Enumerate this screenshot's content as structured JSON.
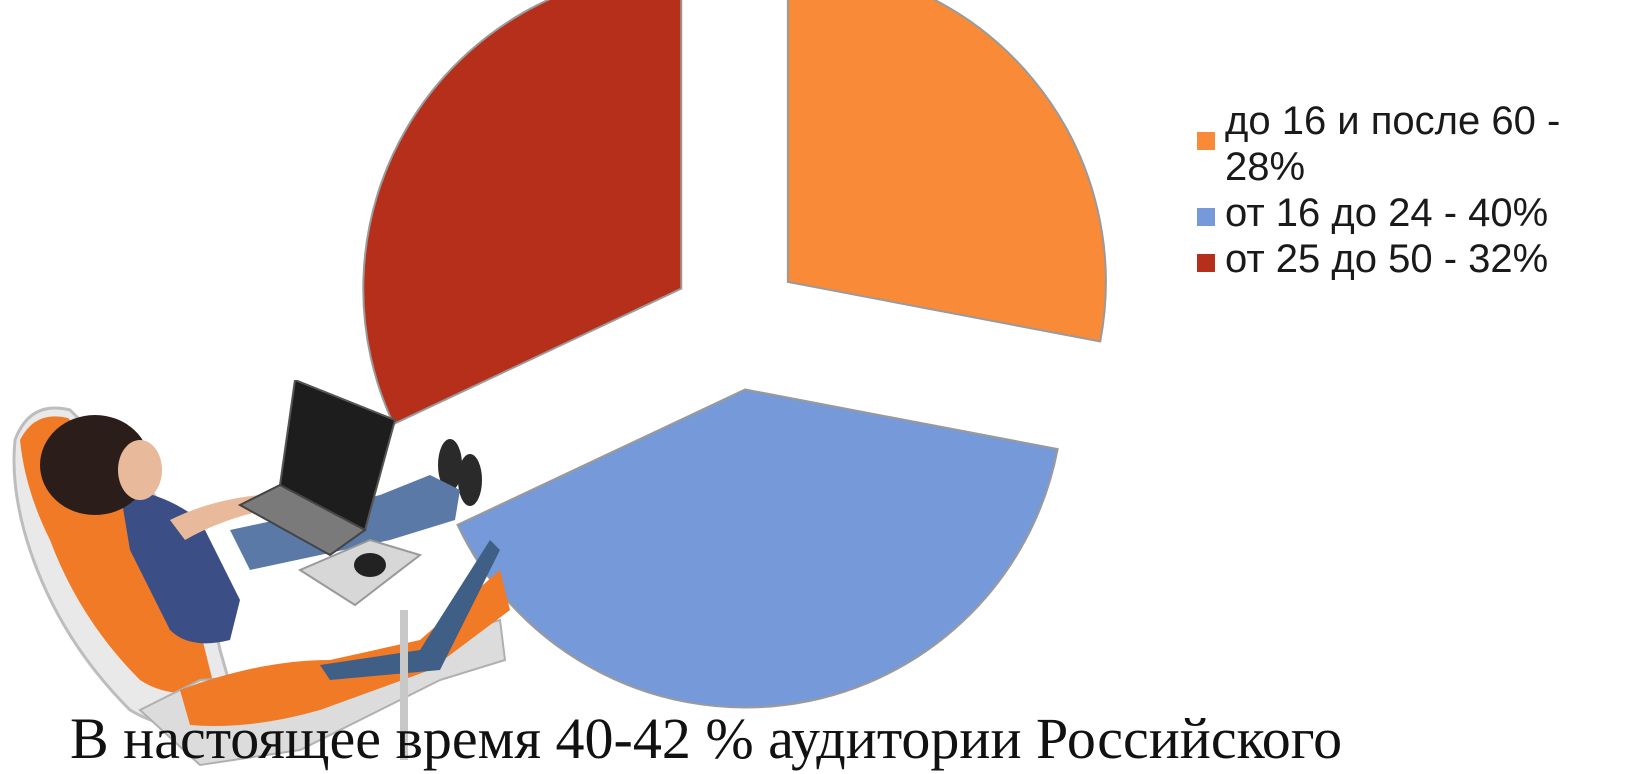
{
  "chart_data": {
    "type": "pie",
    "title": "",
    "slices": [
      {
        "label": "до 16 и после 60 - 28%",
        "value": 28,
        "color": "#F98A38"
      },
      {
        "label": "от 16 до 24 - 40%",
        "value": 40,
        "color": "#7699D9"
      },
      {
        "label": "от 25 до 50 - 32%",
        "value": 32,
        "color": "#B52F1A"
      }
    ],
    "exploded": true,
    "legend_position": "right"
  },
  "caption": {
    "text": "В настоящее время 40-42 % аудитории Российского"
  },
  "illustration": {
    "icon": "person-with-laptop-in-chair-icon"
  }
}
